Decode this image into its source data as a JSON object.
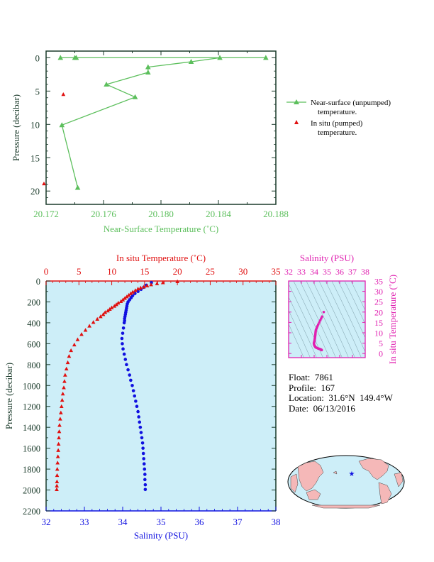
{
  "colors": {
    "green": "#5cbf5c",
    "red": "#e01010",
    "blue": "#1010e0",
    "magenta": "#e020b0",
    "plot_bg": "#cdeef8",
    "land": "#f5b8b8",
    "ocean": "#cdeef8",
    "axis_dark": "#1a3a2a"
  },
  "chart_data": [
    {
      "id": "near_surface",
      "type": "scatter",
      "xlabel": "Near-Surface Temperature (˚C)",
      "ylabel": "Pressure (decibar)",
      "xlim": [
        20.172,
        20.188
      ],
      "ylim": [
        22,
        -1
      ],
      "x_ticks": [
        "20.172",
        "20.176",
        "20.180",
        "20.184",
        "20.188"
      ],
      "y_ticks": [
        "0",
        "5",
        "10",
        "15",
        "20"
      ],
      "series": [
        {
          "name": "Near-surface (unpumped) temperature.",
          "marker": "triangle-line",
          "color": "#5cbf5c",
          "points": [
            [
              20.1873,
              0.0
            ],
            [
              20.174,
              0.0
            ],
            [
              20.173,
              0.0
            ],
            [
              20.1741,
              0.0
            ],
            [
              20.1841,
              0.0
            ],
            [
              20.1821,
              0.6
            ],
            [
              20.1791,
              1.4
            ],
            [
              20.1791,
              2.2
            ],
            [
              20.1762,
              4.0
            ],
            [
              20.1782,
              5.9
            ],
            [
              20.1731,
              10.1
            ],
            [
              20.1742,
              19.5
            ]
          ]
        },
        {
          "name": "In situ (pumped) temperature.",
          "marker": "triangle",
          "color": "#e01010",
          "points": [
            [
              20.1732,
              5.5
            ],
            [
              20.1718,
              18.9
            ]
          ]
        }
      ],
      "legend": [
        {
          "line1": "Near-surface (unpumped)",
          "line2": "temperature."
        },
        {
          "line1": "In situ (pumped)",
          "line2": "temperature."
        }
      ]
    },
    {
      "id": "profile",
      "type": "scatter",
      "top_xlabel": "In situ Temperature (˚C)",
      "bottom_xlabel": "Salinity (PSU)",
      "ylabel": "Pressure (decibar)",
      "temp_xlim": [
        0,
        35
      ],
      "sal_xlim": [
        32,
        38
      ],
      "ylim": [
        2200,
        0
      ],
      "temp_ticks": [
        "0",
        "5",
        "10",
        "15",
        "20",
        "25",
        "30",
        "35"
      ],
      "sal_ticks": [
        "32",
        "33",
        "34",
        "35",
        "36",
        "37",
        "38"
      ],
      "pres_ticks": [
        "0",
        "200",
        "400",
        "600",
        "800",
        "1000",
        "1200",
        "1400",
        "1600",
        "1800",
        "2000",
        "2200"
      ],
      "temperature": [
        [
          20.0,
          5
        ],
        [
          17.8,
          15
        ],
        [
          16.9,
          25
        ],
        [
          16.0,
          35
        ],
        [
          15.4,
          45
        ],
        [
          14.9,
          55
        ],
        [
          14.4,
          65
        ],
        [
          14.0,
          75
        ],
        [
          13.6,
          90
        ],
        [
          13.2,
          105
        ],
        [
          12.9,
          120
        ],
        [
          12.6,
          135
        ],
        [
          12.3,
          150
        ],
        [
          12.0,
          165
        ],
        [
          11.7,
          180
        ],
        [
          11.4,
          195
        ],
        [
          11.0,
          210
        ],
        [
          10.7,
          225
        ],
        [
          10.4,
          240
        ],
        [
          10.0,
          255
        ],
        [
          9.7,
          270
        ],
        [
          9.4,
          285
        ],
        [
          9.0,
          300
        ],
        [
          8.7,
          320
        ],
        [
          8.3,
          340
        ],
        [
          7.8,
          365
        ],
        [
          7.2,
          395
        ],
        [
          6.6,
          430
        ],
        [
          6.0,
          470
        ],
        [
          5.4,
          510
        ],
        [
          4.8,
          560
        ],
        [
          4.3,
          610
        ],
        [
          3.8,
          665
        ],
        [
          3.5,
          720
        ],
        [
          3.3,
          780
        ],
        [
          3.1,
          840
        ],
        [
          2.9,
          900
        ],
        [
          2.8,
          960
        ],
        [
          2.7,
          1020
        ],
        [
          2.55,
          1080
        ],
        [
          2.45,
          1140
        ],
        [
          2.35,
          1200
        ],
        [
          2.25,
          1260
        ],
        [
          2.15,
          1320
        ],
        [
          2.05,
          1380
        ],
        [
          2.0,
          1440
        ],
        [
          1.95,
          1500
        ],
        [
          1.9,
          1560
        ],
        [
          1.85,
          1620
        ],
        [
          1.8,
          1680
        ],
        [
          1.75,
          1740
        ],
        [
          1.7,
          1800
        ],
        [
          1.68,
          1860
        ],
        [
          1.66,
          1920
        ],
        [
          1.64,
          1960
        ],
        [
          1.62,
          1995
        ]
      ],
      "salinity": [
        [
          34.75,
          15
        ],
        [
          34.62,
          40
        ],
        [
          34.55,
          60
        ],
        [
          34.48,
          80
        ],
        [
          34.4,
          100
        ],
        [
          34.32,
          120
        ],
        [
          34.26,
          140
        ],
        [
          34.22,
          160
        ],
        [
          34.18,
          180
        ],
        [
          34.14,
          200
        ],
        [
          34.12,
          220
        ],
        [
          34.11,
          240
        ],
        [
          34.1,
          260
        ],
        [
          34.09,
          280
        ],
        [
          34.08,
          300
        ],
        [
          34.07,
          320
        ],
        [
          34.06,
          340
        ],
        [
          34.05,
          360
        ],
        [
          34.05,
          380
        ],
        [
          34.04,
          400
        ],
        [
          34.02,
          450
        ],
        [
          34.0,
          500
        ],
        [
          33.98,
          550
        ],
        [
          33.99,
          600
        ],
        [
          34.01,
          650
        ],
        [
          34.04,
          700
        ],
        [
          34.07,
          750
        ],
        [
          34.1,
          800
        ],
        [
          34.14,
          850
        ],
        [
          34.18,
          900
        ],
        [
          34.21,
          950
        ],
        [
          34.25,
          1000
        ],
        [
          34.28,
          1050
        ],
        [
          34.31,
          1100
        ],
        [
          34.34,
          1150
        ],
        [
          34.37,
          1200
        ],
        [
          34.4,
          1250
        ],
        [
          34.42,
          1300
        ],
        [
          34.44,
          1350
        ],
        [
          34.46,
          1400
        ],
        [
          34.48,
          1450
        ],
        [
          34.5,
          1500
        ],
        [
          34.52,
          1550
        ],
        [
          34.53,
          1600
        ],
        [
          34.54,
          1650
        ],
        [
          34.55,
          1700
        ],
        [
          34.56,
          1750
        ],
        [
          34.57,
          1800
        ],
        [
          34.58,
          1850
        ],
        [
          34.58,
          1900
        ],
        [
          34.59,
          1950
        ],
        [
          34.59,
          1995
        ]
      ]
    },
    {
      "id": "ts_diagram",
      "type": "scatter",
      "xlabel": "Salinity (PSU)",
      "ylabel": "In situ Temperature (˚C)",
      "xlim": [
        32,
        38
      ],
      "ylim": [
        -2,
        35
      ],
      "x_ticks": [
        "32",
        "33",
        "34",
        "35",
        "36",
        "37",
        "38"
      ],
      "y_ticks": [
        "0",
        "5",
        "10",
        "15",
        "20",
        "25",
        "30",
        "35"
      ],
      "points": [
        [
          34.75,
          20.0
        ],
        [
          34.62,
          17.8
        ],
        [
          34.55,
          16.9
        ],
        [
          34.48,
          16.0
        ],
        [
          34.4,
          15.0
        ],
        [
          34.32,
          14.0
        ],
        [
          34.26,
          13.2
        ],
        [
          34.22,
          12.6
        ],
        [
          34.18,
          12.0
        ],
        [
          34.14,
          11.4
        ],
        [
          34.12,
          10.8
        ],
        [
          34.11,
          10.2
        ],
        [
          34.1,
          9.5
        ],
        [
          34.09,
          9.0
        ],
        [
          34.08,
          8.5
        ],
        [
          34.07,
          8.0
        ],
        [
          34.06,
          7.5
        ],
        [
          34.05,
          7.0
        ],
        [
          34.04,
          6.5
        ],
        [
          34.02,
          6.0
        ],
        [
          34.0,
          5.5
        ],
        [
          33.98,
          5.0
        ],
        [
          33.99,
          4.5
        ],
        [
          34.01,
          4.0
        ],
        [
          34.04,
          3.7
        ],
        [
          34.07,
          3.4
        ],
        [
          34.1,
          3.1
        ],
        [
          34.14,
          2.9
        ],
        [
          34.18,
          2.8
        ],
        [
          34.25,
          2.6
        ],
        [
          34.31,
          2.4
        ],
        [
          34.37,
          2.3
        ],
        [
          34.42,
          2.2
        ],
        [
          34.46,
          2.1
        ],
        [
          34.5,
          2.0
        ],
        [
          34.53,
          1.9
        ],
        [
          34.55,
          1.85
        ],
        [
          34.57,
          1.75
        ],
        [
          34.58,
          1.7
        ],
        [
          34.59,
          1.65
        ]
      ]
    }
  ],
  "info": {
    "float": "Float:  7861",
    "profile": "Profile:  167",
    "location": "Location:  31.6°N  149.4°W",
    "date": "Date:  06/13/2016"
  },
  "map": {
    "marker": "float-location-star"
  }
}
